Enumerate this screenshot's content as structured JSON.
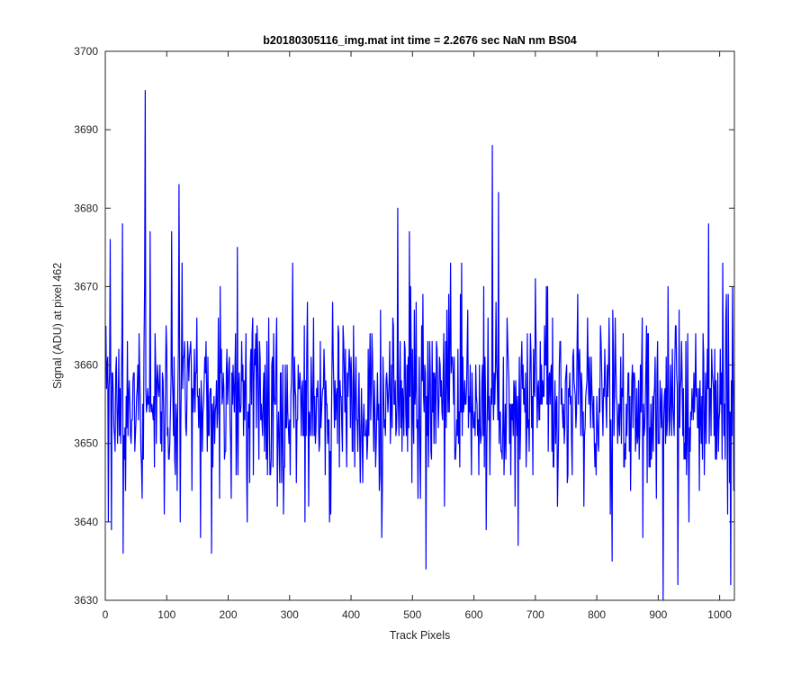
{
  "chart_data": {
    "type": "line",
    "title": "b20180305116_img.mat int time = 2.2676 sec  NaN nm BS04",
    "xlabel": "Track Pixels",
    "ylabel": "Signal (ADU) at pixel 462",
    "xlim": [
      0,
      1024
    ],
    "ylim": [
      3630,
      3700
    ],
    "x_ticks": [
      0,
      100,
      200,
      300,
      400,
      500,
      600,
      700,
      800,
      900,
      1000
    ],
    "y_ticks": [
      3630,
      3640,
      3650,
      3660,
      3670,
      3680,
      3690,
      3700
    ],
    "grid": false,
    "line_color": "#0000ff",
    "series": [
      {
        "x_start": 1,
        "x_step": 1,
        "baseline": 3655.5,
        "noise_sd": 5.6,
        "n_points": 1024,
        "highlighted_points": [
          {
            "x": 5,
            "y": 3640
          },
          {
            "x": 8,
            "y": 3676
          },
          {
            "x": 10,
            "y": 3639
          },
          {
            "x": 28,
            "y": 3678
          },
          {
            "x": 29,
            "y": 3636
          },
          {
            "x": 60,
            "y": 3643
          },
          {
            "x": 65,
            "y": 3695
          },
          {
            "x": 73,
            "y": 3677
          },
          {
            "x": 108,
            "y": 3677
          },
          {
            "x": 120,
            "y": 3683
          },
          {
            "x": 122,
            "y": 3640
          },
          {
            "x": 125,
            "y": 3673
          },
          {
            "x": 155,
            "y": 3638
          },
          {
            "x": 173,
            "y": 3636
          },
          {
            "x": 205,
            "y": 3643
          },
          {
            "x": 215,
            "y": 3675
          },
          {
            "x": 231,
            "y": 3640
          },
          {
            "x": 305,
            "y": 3673
          },
          {
            "x": 325,
            "y": 3640
          },
          {
            "x": 365,
            "y": 3640
          },
          {
            "x": 450,
            "y": 3638
          },
          {
            "x": 476,
            "y": 3680
          },
          {
            "x": 495,
            "y": 3677
          },
          {
            "x": 522,
            "y": 3634
          },
          {
            "x": 562,
            "y": 3673
          },
          {
            "x": 580,
            "y": 3673
          },
          {
            "x": 620,
            "y": 3639
          },
          {
            "x": 630,
            "y": 3688
          },
          {
            "x": 640,
            "y": 3682
          },
          {
            "x": 672,
            "y": 3637
          },
          {
            "x": 700,
            "y": 3671
          },
          {
            "x": 825,
            "y": 3635
          },
          {
            "x": 875,
            "y": 3638
          },
          {
            "x": 908,
            "y": 3630
          },
          {
            "x": 932,
            "y": 3632
          },
          {
            "x": 950,
            "y": 3640
          },
          {
            "x": 982,
            "y": 3678
          },
          {
            "x": 1005,
            "y": 3673
          },
          {
            "x": 1018,
            "y": 3632
          }
        ]
      }
    ]
  }
}
